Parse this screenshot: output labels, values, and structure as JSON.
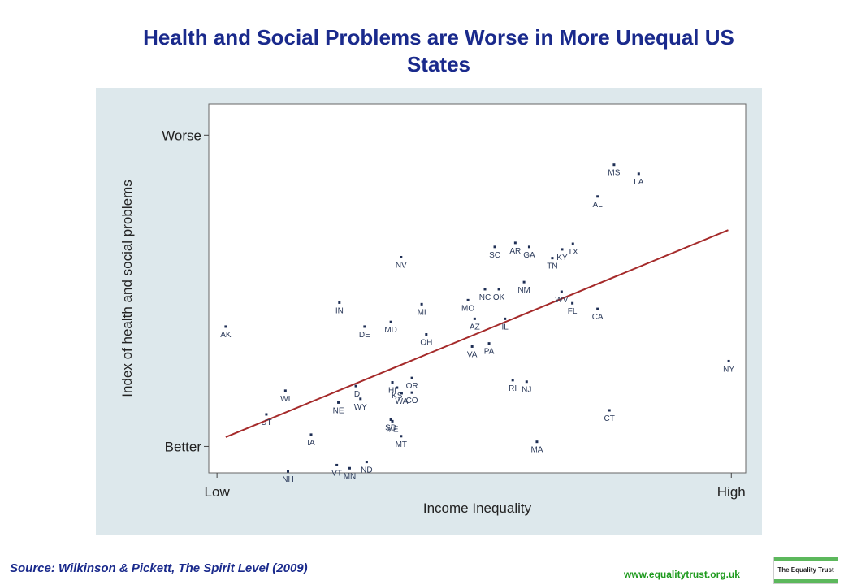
{
  "title_line1": "Health and Social Problems are Worse in More Unequal US",
  "title_line2": "States",
  "source": "Source: Wilkinson & Pickett, The Spirit Level (2009)",
  "website": "www.equalitytrust.org.uk",
  "logo_text": "The Equality Trust",
  "colors": {
    "title": "#1a2a8c",
    "panel": "#dde8ec",
    "fit_line": "#a52a2a",
    "points": "#1f2f55",
    "source": "#1a2a8c",
    "website": "#1e9a1e",
    "logo_bar": "#5cb85c"
  },
  "chart_data": {
    "type": "scatter",
    "xlabel": "Income Inequality",
    "ylabel": "Index of health and social problems",
    "x_ticks": [
      {
        "value": 0,
        "label": "Low"
      },
      {
        "value": 100,
        "label": "High"
      }
    ],
    "y_ticks": [
      {
        "value": 0,
        "label": "Better"
      },
      {
        "value": 100,
        "label": "Worse"
      }
    ],
    "xlim": [
      -1.6,
      102.8
    ],
    "ylim": [
      -8.5,
      110
    ],
    "grid": false,
    "fit_line": {
      "x": [
        1.7,
        99.4
      ],
      "y": [
        3.0,
        69.5
      ]
    },
    "points": [
      {
        "label": "AK",
        "x": 1.7,
        "y": 38.5
      },
      {
        "label": "NH",
        "x": 13.8,
        "y": -8.0
      },
      {
        "label": "UT",
        "x": 9.6,
        "y": 10.3
      },
      {
        "label": "WI",
        "x": 13.3,
        "y": 17.9
      },
      {
        "label": "IA",
        "x": 18.3,
        "y": 3.8
      },
      {
        "label": "VT",
        "x": 23.3,
        "y": -6.0
      },
      {
        "label": "MN",
        "x": 25.8,
        "y": -7.0
      },
      {
        "label": "ND",
        "x": 29.1,
        "y": -5.0
      },
      {
        "label": "NE",
        "x": 23.6,
        "y": 14.1
      },
      {
        "label": "WY",
        "x": 27.9,
        "y": 15.3
      },
      {
        "label": "ID",
        "x": 27.0,
        "y": 19.4
      },
      {
        "label": "IN",
        "x": 23.8,
        "y": 46.2
      },
      {
        "label": "DE",
        "x": 28.7,
        "y": 38.5
      },
      {
        "label": "MD",
        "x": 33.8,
        "y": 40.0
      },
      {
        "label": "NV",
        "x": 35.8,
        "y": 60.8
      },
      {
        "label": "MI",
        "x": 39.8,
        "y": 45.7
      },
      {
        "label": "OH",
        "x": 40.7,
        "y": 36.0
      },
      {
        "label": "HI",
        "x": 34.1,
        "y": 20.6
      },
      {
        "label": "OR",
        "x": 37.9,
        "y": 22.0
      },
      {
        "label": "KS",
        "x": 35.0,
        "y": 18.9
      },
      {
        "label": "CO",
        "x": 37.9,
        "y": 17.3
      },
      {
        "label": "WA",
        "x": 35.9,
        "y": 17.1
      },
      {
        "label": "SD",
        "x": 33.8,
        "y": 8.6
      },
      {
        "label": "ME",
        "x": 34.1,
        "y": 8.1
      },
      {
        "label": "MT",
        "x": 35.8,
        "y": 3.3
      },
      {
        "label": "SC",
        "x": 54.0,
        "y": 64.1
      },
      {
        "label": "AR",
        "x": 58.0,
        "y": 65.4
      },
      {
        "label": "GA",
        "x": 60.7,
        "y": 64.1
      },
      {
        "label": "TN",
        "x": 65.2,
        "y": 60.5
      },
      {
        "label": "TX",
        "x": 69.2,
        "y": 65.1
      },
      {
        "label": "KY",
        "x": 67.1,
        "y": 63.3
      },
      {
        "label": "NC",
        "x": 52.1,
        "y": 50.5
      },
      {
        "label": "OK",
        "x": 54.8,
        "y": 50.5
      },
      {
        "label": "NM",
        "x": 59.7,
        "y": 52.8
      },
      {
        "label": "MO",
        "x": 48.8,
        "y": 47.0
      },
      {
        "label": "AZ",
        "x": 50.1,
        "y": 41.0
      },
      {
        "label": "IL",
        "x": 56.0,
        "y": 41.0
      },
      {
        "label": "PA",
        "x": 52.9,
        "y": 33.1
      },
      {
        "label": "VA",
        "x": 49.6,
        "y": 32.1
      },
      {
        "label": "WV",
        "x": 67.0,
        "y": 49.7
      },
      {
        "label": "FL",
        "x": 69.1,
        "y": 46.0
      },
      {
        "label": "CA",
        "x": 74.0,
        "y": 44.2
      },
      {
        "label": "AL",
        "x": 74.0,
        "y": 80.3
      },
      {
        "label": "MS",
        "x": 77.2,
        "y": 90.5
      },
      {
        "label": "LA",
        "x": 82.0,
        "y": 87.6
      },
      {
        "label": "RI",
        "x": 57.5,
        "y": 21.3
      },
      {
        "label": "NJ",
        "x": 60.2,
        "y": 20.8
      },
      {
        "label": "MA",
        "x": 62.2,
        "y": 1.5
      },
      {
        "label": "CT",
        "x": 76.3,
        "y": 11.6
      },
      {
        "label": "NY",
        "x": 99.5,
        "y": 27.4
      }
    ]
  }
}
